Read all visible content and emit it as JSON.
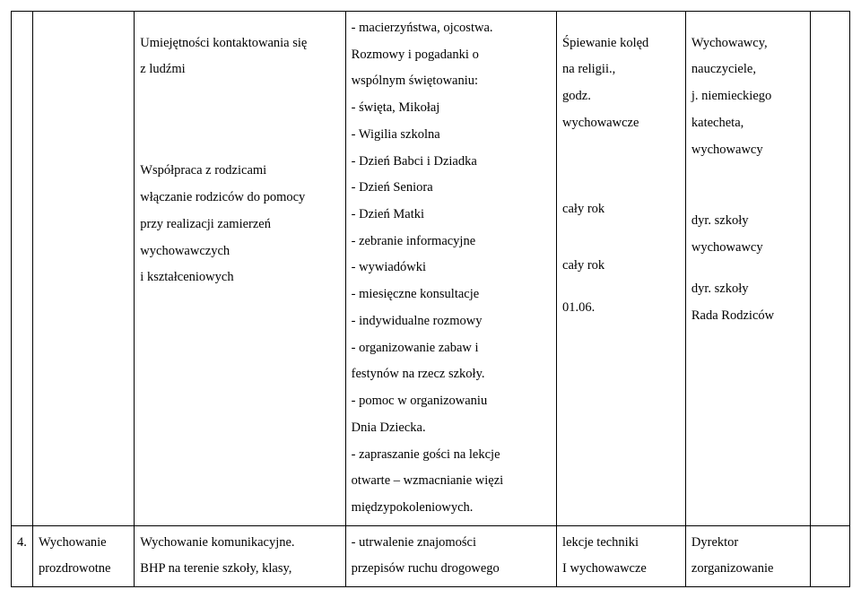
{
  "row0": {
    "c2_lines": [
      "Umiejętności kontaktowania się",
      "z ludźmi",
      "",
      "",
      "",
      "",
      "",
      "Współpraca z rodzicami",
      "włączanie rodziców do pomocy",
      "przy realizacji zamierzeń",
      "wychowawczych",
      " i kształceniowych"
    ],
    "c3_lines": [
      "- macierzyństwa, ojcostwa.",
      "Rozmowy i pogadanki o",
      "wspólnym świętowaniu:",
      "- święta, Mikołaj",
      "- Wigilia szkolna",
      "- Dzień Babci i Dziadka",
      "- Dzień Seniora",
      "- Dzień Matki",
      "- zebranie informacyjne",
      "- wywiadówki",
      "- miesięczne konsultacje",
      "- indywidualne rozmowy",
      "- organizowanie zabaw i",
      "festynów na rzecz szkoły.",
      "- pomoc w organizowaniu",
      "Dnia Dziecka.",
      "- zapraszanie gości na lekcje",
      "otwarte – wzmacnianie więzi",
      "międzypokoleniowych."
    ],
    "c4_lines": [
      "",
      "Śpiewanie kolęd",
      "na religii.,",
      "godz.",
      "wychowawcze",
      "",
      "",
      "",
      "",
      "cały rok",
      "",
      "",
      "cały rok",
      "",
      "01.06."
    ],
    "c5_lines": [
      "",
      "Wychowawcy,",
      "nauczyciele,",
      "j. niemieckiego",
      "katecheta,",
      "wychowawcy",
      "",
      "",
      "",
      "dyr. szkoły",
      "wychowawcy",
      "",
      "dyr. szkoły",
      "Rada Rodziców"
    ]
  },
  "row1": {
    "c0": "4.",
    "c1_lines": [
      "Wychowanie",
      "prozdrowotne"
    ],
    "c2_lines": [
      "Wychowanie komunikacyjne.",
      "BHP na terenie szkoły, klasy,"
    ],
    "c3_lines": [
      "- utrwalenie znajomości",
      "przepisów ruchu drogowego"
    ],
    "c4_lines": [
      "lekcje techniki",
      "I wychowawcze"
    ],
    "c5_lines": [
      "Dyrektor",
      "zorganizowanie"
    ]
  }
}
